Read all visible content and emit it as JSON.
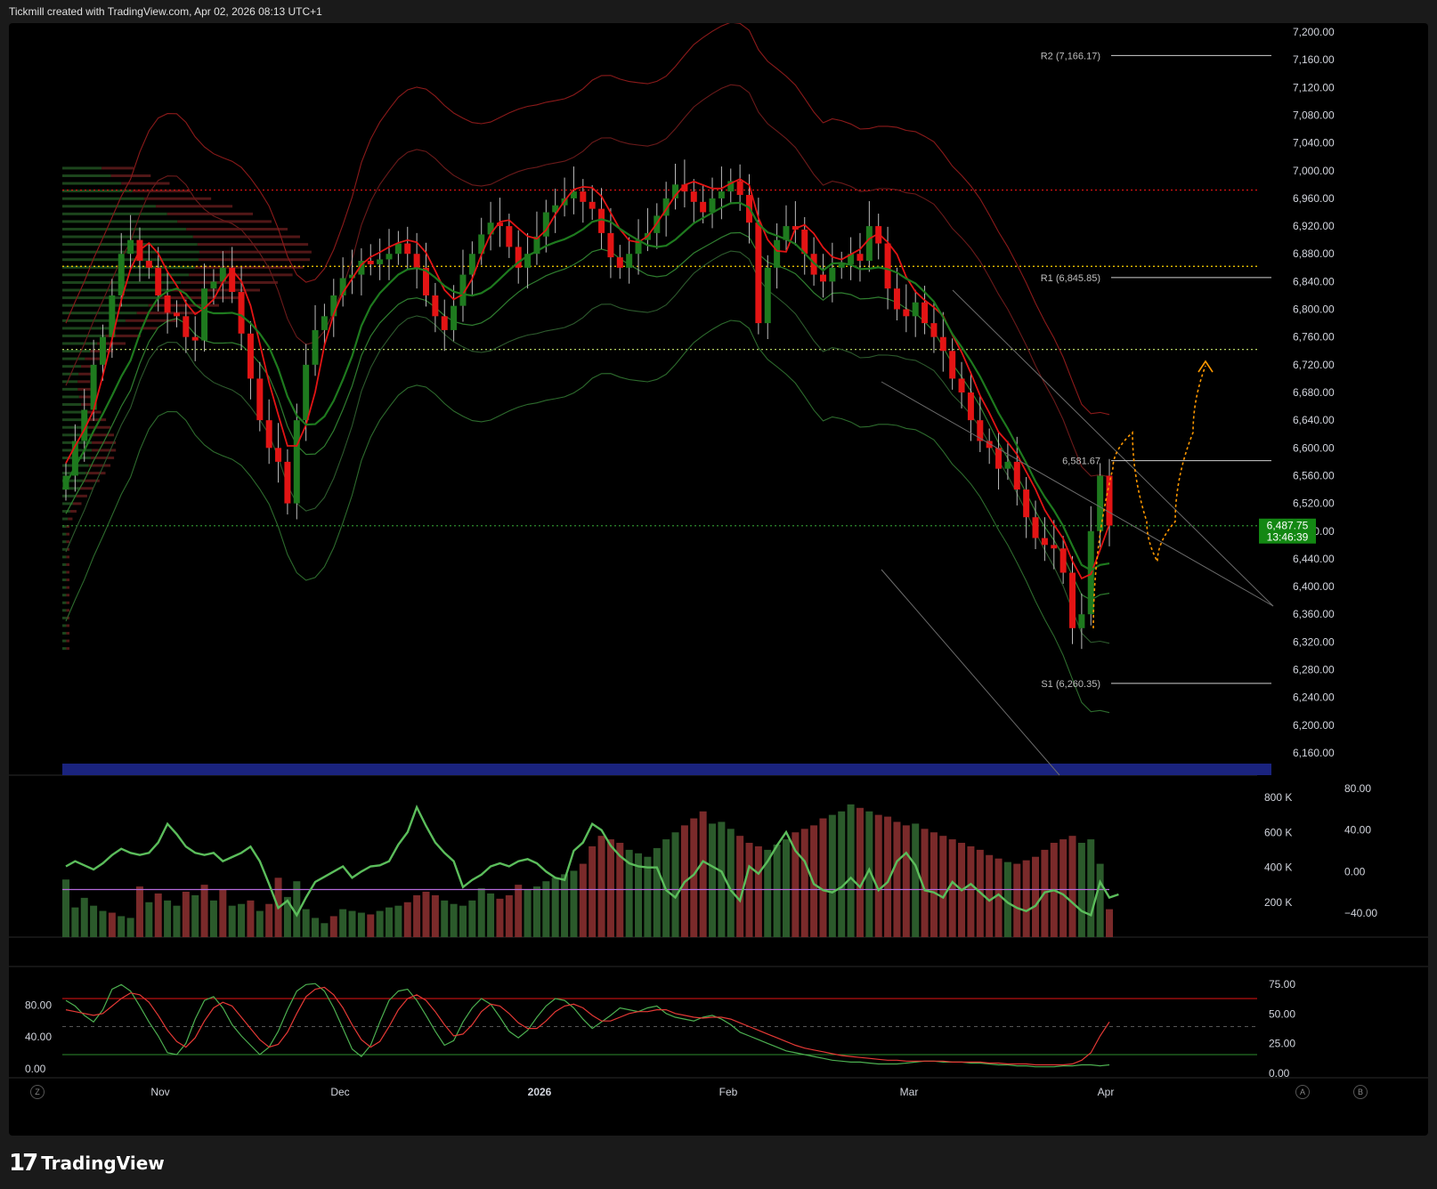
{
  "header": {
    "caption": "Tickmill created with TradingView.com, Apr 02, 2026 08:13 UTC+1"
  },
  "footer": {
    "logo_glyph": "17",
    "brand": "TradingView"
  },
  "corner_buttons": {
    "left": "Z",
    "right_a": "A",
    "right_b": "B"
  },
  "colors": {
    "up": "#1e7a1e",
    "down": "#e31414",
    "background": "#000000",
    "projection": "#ff9800",
    "price_tag": "#138813"
  },
  "chart_data": [
    {
      "type": "candlestick",
      "pane": "price",
      "y_axis": {
        "ticks": [
          "7,200.00",
          "7,160.00",
          "7,120.00",
          "7,080.00",
          "7,040.00",
          "7,000.00",
          "6,960.00",
          "6,920.00",
          "6,880.00",
          "6,840.00",
          "6,800.00",
          "6,760.00",
          "6,720.00",
          "6,680.00",
          "6,640.00",
          "6,600.00",
          "6,560.00",
          "6,520.00",
          "6,480.00",
          "6,440.00",
          "6,400.00",
          "6,360.00",
          "6,320.00",
          "6,280.00",
          "6,240.00",
          "6,200.00",
          "6,160.00"
        ],
        "range": [
          6145,
          7210
        ]
      },
      "x_axis": {
        "ticks": [
          "Nov",
          "Dec",
          "2026",
          "Feb",
          "Mar",
          "Apr"
        ],
        "bold_tick": "2026"
      },
      "last_price": {
        "value": "6,487.75",
        "countdown": "13:46:39"
      },
      "pivot_levels": [
        {
          "label": "R2 (7,166.17)",
          "value": 7166.17
        },
        {
          "label": "R1 (6,845.85)",
          "value": 6845.85
        },
        {
          "label": "6,581.67",
          "value": 6581.67
        },
        {
          "label": "S1 (6,260.35)",
          "value": 6260.35
        }
      ],
      "horizontal_levels": [
        {
          "value": 6972,
          "color": "#e31414",
          "style": "dotted"
        },
        {
          "value": 6862,
          "color": "#ffd500",
          "style": "dotted"
        },
        {
          "value": 6742,
          "color": "#c8e66e",
          "style": "dotted"
        },
        {
          "value": 6487.75,
          "color": "#2e8b2e",
          "style": "dotted"
        }
      ],
      "closes": [
        6560,
        6610,
        6655,
        6720,
        6760,
        6820,
        6880,
        6900,
        6870,
        6860,
        6820,
        6795,
        6790,
        6760,
        6755,
        6830,
        6840,
        6860,
        6825,
        6765,
        6700,
        6640,
        6600,
        6580,
        6520,
        6640,
        6720,
        6770,
        6790,
        6820,
        6845,
        6850,
        6870,
        6865,
        6872,
        6880,
        6895,
        6880,
        6860,
        6820,
        6790,
        6770,
        6805,
        6850,
        6880,
        6908,
        6925,
        6920,
        6890,
        6860,
        6880,
        6905,
        6940,
        6950,
        6960,
        6970,
        6955,
        6945,
        6910,
        6875,
        6860,
        6880,
        6900,
        6910,
        6935,
        6960,
        6980,
        6970,
        6955,
        6940,
        6960,
        6970,
        6985,
        6965,
        6925,
        6780,
        6860,
        6900,
        6920,
        6915,
        6880,
        6850,
        6840,
        6860,
        6865,
        6880,
        6870,
        6920,
        6895,
        6830,
        6800,
        6790,
        6810,
        6780,
        6760,
        6740,
        6700,
        6680,
        6640,
        6610,
        6600,
        6570,
        6580,
        6540,
        6500,
        6470,
        6460,
        6455,
        6420,
        6340,
        6360,
        6480,
        6560,
        6488
      ]
    },
    {
      "type": "bar",
      "pane": "volume",
      "y_axis_left": [
        "800 K",
        "600 K",
        "400 K",
        "200 K"
      ],
      "y_axis_right": [
        "80.00",
        "40.00",
        "0.00",
        "−40.00"
      ],
      "oscillator_baseline": 0,
      "volume_k": [
        330,
        170,
        225,
        180,
        150,
        140,
        120,
        110,
        290,
        200,
        250,
        210,
        180,
        260,
        240,
        300,
        210,
        270,
        180,
        190,
        210,
        150,
        190,
        340,
        230,
        320,
        160,
        110,
        80,
        120,
        160,
        150,
        140,
        130,
        150,
        170,
        180,
        200,
        240,
        260,
        240,
        210,
        190,
        180,
        210,
        280,
        250,
        220,
        240,
        300,
        270,
        290,
        320,
        340,
        360,
        380,
        420,
        520,
        580,
        560,
        540,
        500,
        480,
        460,
        510,
        560,
        600,
        640,
        680,
        720,
        650,
        660,
        620,
        580,
        540,
        520,
        500,
        530,
        560,
        600,
        620,
        640,
        680,
        700,
        720,
        760,
        740,
        720,
        700,
        690,
        660,
        640,
        650,
        620,
        600,
        580,
        560,
        540,
        520,
        500,
        470,
        450,
        430,
        420,
        440,
        460,
        500,
        540,
        560,
        580,
        540,
        560,
        420,
        160
      ],
      "volume_up": [
        1,
        1,
        1,
        1,
        1,
        0,
        1,
        1,
        0,
        1,
        0,
        1,
        1,
        0,
        1,
        0,
        1,
        0,
        1,
        1,
        0,
        1,
        0,
        0,
        1,
        1,
        1,
        1,
        1,
        0,
        1,
        1,
        1,
        0,
        1,
        1,
        1,
        0,
        0,
        0,
        0,
        1,
        1,
        1,
        1,
        1,
        1,
        0,
        0,
        0,
        1,
        1,
        1,
        1,
        1,
        1,
        0,
        0,
        0,
        0,
        0,
        1,
        1,
        1,
        1,
        1,
        1,
        0,
        0,
        0,
        1,
        1,
        1,
        0,
        0,
        0,
        1,
        1,
        1,
        0,
        0,
        0,
        0,
        1,
        1,
        1,
        0,
        1,
        0,
        0,
        0,
        0,
        1,
        0,
        0,
        0,
        0,
        0,
        0,
        0,
        0,
        0,
        1,
        0,
        0,
        0,
        0,
        0,
        0,
        0,
        1,
        1,
        1,
        0
      ],
      "oscillator": [
        5,
        10,
        6,
        2,
        8,
        16,
        22,
        18,
        16,
        18,
        28,
        46,
        36,
        24,
        18,
        16,
        18,
        10,
        14,
        18,
        24,
        10,
        -12,
        -35,
        -28,
        -42,
        -25,
        -10,
        -5,
        0,
        5,
        -6,
        0,
        5,
        6,
        10,
        26,
        38,
        62,
        44,
        28,
        18,
        10,
        -15,
        -8,
        -3,
        5,
        8,
        5,
        10,
        12,
        8,
        0,
        -6,
        -8,
        20,
        28,
        46,
        40,
        25,
        15,
        8,
        5,
        4,
        4,
        -18,
        -25,
        -10,
        -3,
        10,
        5,
        0,
        -18,
        -28,
        5,
        -2,
        10,
        25,
        38,
        20,
        10,
        -12,
        -18,
        -20,
        -15,
        -6,
        -15,
        2,
        -18,
        -10,
        10,
        18,
        6,
        -18,
        -20,
        -25,
        -10,
        -18,
        -12,
        -20,
        -28,
        -22,
        -30,
        -35,
        -38,
        -33,
        -20,
        -18,
        -22,
        -30,
        -38,
        -42,
        -10,
        -25,
        -22
      ]
    },
    {
      "type": "line",
      "pane": "stochastic",
      "y_axis_left": [
        "80.00",
        "40.00",
        "0.00"
      ],
      "y_axis_right": [
        "75.00",
        "50.00",
        "25.00",
        "0.00"
      ],
      "overbought": 80,
      "oversold": 20,
      "midline": 50,
      "k_line": [
        78,
        72,
        62,
        55,
        68,
        90,
        95,
        88,
        72,
        55,
        40,
        22,
        20,
        32,
        58,
        78,
        82,
        70,
        52,
        40,
        30,
        20,
        28,
        45,
        68,
        88,
        95,
        96,
        88,
        70,
        48,
        26,
        18,
        30,
        55,
        78,
        88,
        90,
        78,
        62,
        45,
        30,
        35,
        55,
        70,
        80,
        74,
        60,
        45,
        38,
        46,
        60,
        72,
        80,
        78,
        70,
        58,
        48,
        55,
        62,
        70,
        68,
        66,
        70,
        72,
        64,
        60,
        58,
        56,
        60,
        62,
        58,
        52,
        44,
        40,
        36,
        32,
        28,
        24,
        22,
        20,
        18,
        16,
        14,
        13,
        12,
        12,
        11,
        10,
        10,
        10,
        11,
        12,
        13,
        13,
        12,
        12,
        12,
        11,
        11,
        10,
        9,
        9,
        8,
        8,
        7,
        7,
        7,
        8,
        8,
        9,
        9,
        8,
        9
      ],
      "d_line": [
        68,
        66,
        64,
        62,
        64,
        72,
        80,
        86,
        84,
        76,
        62,
        46,
        34,
        28,
        38,
        56,
        70,
        76,
        72,
        60,
        48,
        36,
        28,
        31,
        44,
        64,
        82,
        90,
        92,
        84,
        70,
        52,
        36,
        28,
        34,
        50,
        68,
        80,
        84,
        78,
        66,
        52,
        40,
        42,
        52,
        66,
        74,
        72,
        64,
        54,
        48,
        48,
        56,
        66,
        72,
        74,
        70,
        62,
        56,
        56,
        60,
        64,
        66,
        66,
        68,
        68,
        64,
        62,
        60,
        59,
        60,
        60,
        58,
        54,
        50,
        46,
        42,
        38,
        34,
        30,
        27,
        25,
        23,
        21,
        19,
        18,
        17,
        16,
        15,
        14,
        14,
        13,
        13,
        13,
        13,
        13,
        12,
        12,
        12,
        12,
        11,
        11,
        10,
        10,
        10,
        9,
        9,
        9,
        9,
        10,
        14,
        22,
        40,
        55
      ]
    }
  ]
}
